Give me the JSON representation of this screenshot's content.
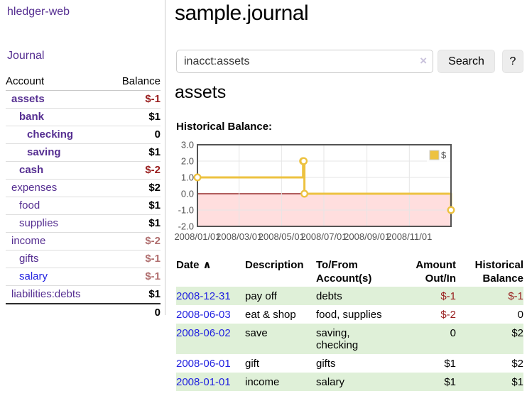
{
  "colors": {
    "link_purple": "#552e91",
    "link_blue": "#2222e0",
    "negative_strong": "#981c1c",
    "negative_soft": "#b06e6e",
    "row_green": "#dff0d8",
    "series_gold": "#edc240",
    "zero_line": "#800000",
    "grid_line": "#e6e6e6",
    "plot_border": "#545454",
    "negative_region": "rgba(255,0,0,0.13)"
  },
  "sidebar": {
    "brand": "hledger-web",
    "nav": {
      "journal": "Journal"
    },
    "table": {
      "header": {
        "account": "Account",
        "balance": "Balance"
      },
      "rows": [
        {
          "name": "assets",
          "balance": "$-1"
        },
        {
          "name": "bank",
          "balance": "$1"
        },
        {
          "name": "checking",
          "balance": "0"
        },
        {
          "name": "saving",
          "balance": "$1"
        },
        {
          "name": "cash",
          "balance": "$-2"
        },
        {
          "name": "expenses",
          "balance": "$2"
        },
        {
          "name": "food",
          "balance": "$1"
        },
        {
          "name": "supplies",
          "balance": "$1"
        },
        {
          "name": "income",
          "balance": "$-2"
        },
        {
          "name": "gifts",
          "balance": "$-1"
        },
        {
          "name": "salary",
          "balance": "$-1"
        },
        {
          "name": "liabilities:debts",
          "balance": "$1"
        }
      ],
      "total": "0"
    }
  },
  "main": {
    "title": "sample.journal",
    "search": {
      "query": "inacct:assets",
      "clear_icon": "×",
      "search_button": "Search",
      "help_button": "?"
    },
    "account_heading": "assets",
    "chart_title": "Historical Balance:",
    "register": {
      "header": {
        "date": "Date",
        "sort_icon": "∧",
        "description": "Description",
        "accounts": "To/From Account(s)",
        "amount": "Amount Out/In",
        "balance": "Historical Balance"
      },
      "rows": [
        {
          "date": "2008-12-31",
          "description": "pay off",
          "accounts": "debts",
          "amount": "$-1",
          "balance": "$-1"
        },
        {
          "date": "2008-06-03",
          "description": "eat & shop",
          "accounts": "food, supplies",
          "amount": "$-2",
          "balance": "0"
        },
        {
          "date": "2008-06-02",
          "description": "save",
          "accounts": "saving,\nchecking",
          "amount": "0",
          "balance": "$2"
        },
        {
          "date": "2008-06-01",
          "description": "gift",
          "accounts": "gifts",
          "amount": "$1",
          "balance": "$2"
        },
        {
          "date": "2008-01-01",
          "description": "income",
          "accounts": "salary",
          "amount": "$1",
          "balance": "$1"
        }
      ]
    }
  },
  "chart_data": {
    "type": "line",
    "title": "Historical Balance:",
    "step": true,
    "series": [
      {
        "name": "$",
        "color": "#edc240",
        "points": [
          [
            "2008-01-01",
            1
          ],
          [
            "2008-06-01",
            2
          ],
          [
            "2008-06-02",
            2
          ],
          [
            "2008-06-03",
            0
          ],
          [
            "2008-12-31",
            -1
          ]
        ]
      }
    ],
    "x_range": [
      "2008-01-01",
      "2008-12-31"
    ],
    "ylim": [
      -2,
      3
    ],
    "y_ticks": [
      "3.0",
      "2.0",
      "1.0",
      "0.0",
      "-1.0",
      "-2.0"
    ],
    "x_ticks": [
      {
        "label": "2008/01/01",
        "date": "2008-01-01"
      },
      {
        "label": "2008/03/01",
        "date": "2008-03-01"
      },
      {
        "label": "2008/05/01",
        "date": "2008-05-01"
      },
      {
        "label": "2008/07/01",
        "date": "2008-07-01"
      },
      {
        "label": "2008/09/01",
        "date": "2008-09-01"
      },
      {
        "label": "2008/11/01",
        "date": "2008-11-01"
      }
    ],
    "legend": {
      "label": "$",
      "position": "top-right"
    },
    "grid": true,
    "negative_region_shaded": true,
    "zero_line": true
  }
}
